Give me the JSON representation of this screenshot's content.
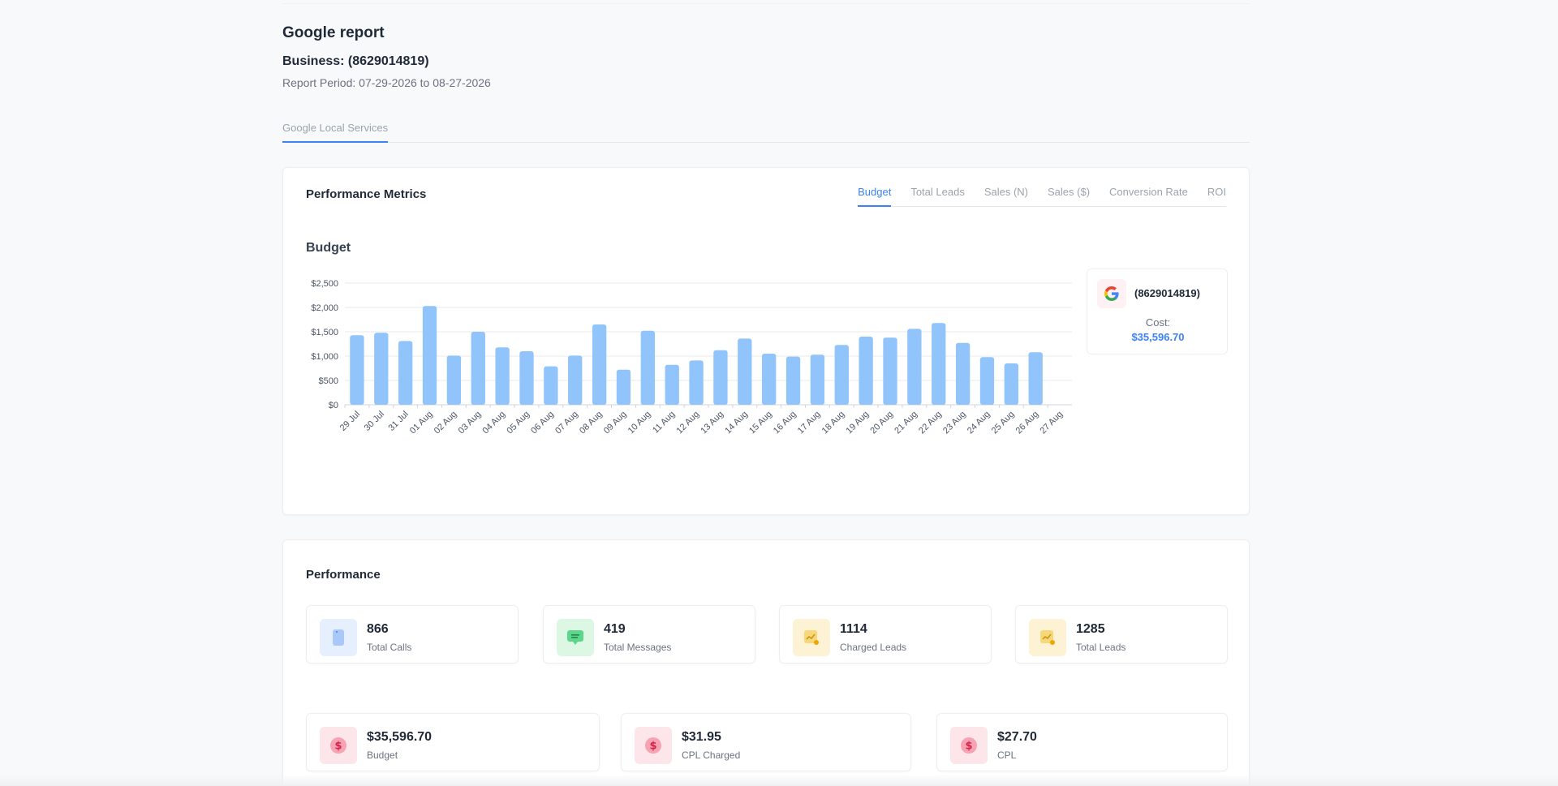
{
  "report": {
    "title": "Google report",
    "business": "Business: (8629014819)",
    "period": "Report Period: 07-29-2026 to 08-27-2026"
  },
  "main_tabs": [
    {
      "label": "Google Local Services"
    }
  ],
  "performance_metrics": {
    "title": "Performance Metrics",
    "tabs": [
      {
        "label": "Budget"
      },
      {
        "label": "Total Leads"
      },
      {
        "label": "Sales (N)"
      },
      {
        "label": "Sales ($)"
      },
      {
        "label": "Conversion Rate"
      },
      {
        "label": "ROI"
      }
    ],
    "active_tab": "Budget",
    "chart_title": "Budget"
  },
  "legend": {
    "name": "(8629014819)",
    "cost_label": "Cost:",
    "cost_value": "$35,596.70"
  },
  "chart_data": {
    "type": "bar",
    "categories": [
      "29 Jul",
      "30 Jul",
      "31 Jul",
      "01 Aug",
      "02 Aug",
      "03 Aug",
      "04 Aug",
      "05 Aug",
      "06 Aug",
      "07 Aug",
      "08 Aug",
      "09 Aug",
      "10 Aug",
      "11 Aug",
      "12 Aug",
      "13 Aug",
      "14 Aug",
      "15 Aug",
      "16 Aug",
      "17 Aug",
      "18 Aug",
      "19 Aug",
      "20 Aug",
      "21 Aug",
      "22 Aug",
      "23 Aug",
      "24 Aug",
      "25 Aug",
      "26 Aug",
      "27 Aug"
    ],
    "values": [
      1430,
      1480,
      1310,
      2030,
      1010,
      1500,
      1180,
      1100,
      790,
      1010,
      1650,
      720,
      1520,
      820,
      910,
      1120,
      1360,
      1050,
      990,
      1030,
      1230,
      1400,
      1380,
      1560,
      1680,
      1270,
      980,
      850,
      1080,
      0
    ],
    "yticks": [
      "$0",
      "$500",
      "$1,000",
      "$1,500",
      "$2,000",
      "$2,500"
    ],
    "ylim": [
      0,
      2500
    ],
    "bar_color": "#90c4fb",
    "grid": true
  },
  "performance": {
    "title": "Performance",
    "stats_row1": [
      {
        "value": "866",
        "label": "Total Calls",
        "icon": "phone-icon",
        "bg": "#e6effd"
      },
      {
        "value": "419",
        "label": "Total Messages",
        "icon": "message-icon",
        "bg": "#dcf7e4"
      },
      {
        "value": "1114",
        "label": "Charged Leads",
        "icon": "chart-icon",
        "bg": "#fdf3d4"
      },
      {
        "value": "1285",
        "label": "Total Leads",
        "icon": "chart-icon",
        "bg": "#fdf3d4"
      }
    ],
    "stats_row2": [
      {
        "value": "$35,596.70",
        "label": "Budget",
        "icon": "dollar-icon",
        "bg": "#fde6ea"
      },
      {
        "value": "$31.95",
        "label": "CPL Charged",
        "icon": "dollar-icon",
        "bg": "#fde6ea"
      },
      {
        "value": "$27.70",
        "label": "CPL",
        "icon": "dollar-icon",
        "bg": "#fde6ea"
      }
    ]
  }
}
